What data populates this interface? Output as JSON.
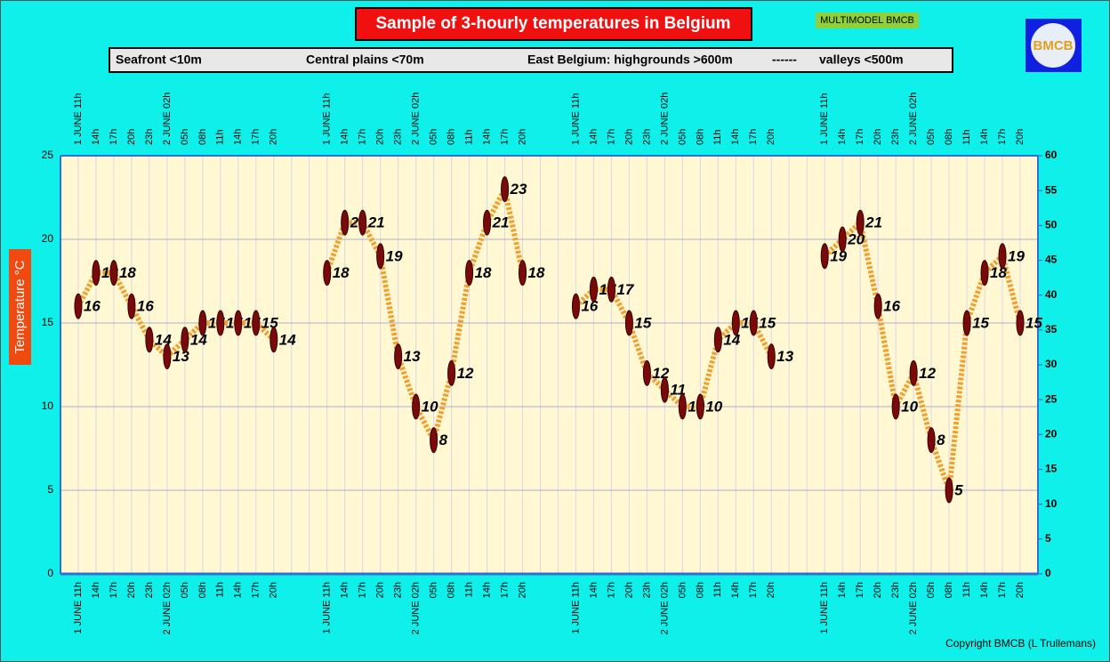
{
  "chart_data": {
    "type": "line",
    "title": "Sample of 3-hourly temperatures in Belgium",
    "badge": "MULTIMODEL BMCB",
    "logo_text": "BMCB",
    "legend_bar": [
      "Seafront <10m",
      "Central plains <70m",
      "East Belgium: highgrounds >600m",
      "------",
      "valleys <500m"
    ],
    "y_label": "Temperature  °C",
    "copyright": "Copyright BMCB (L Trullemans)",
    "categories": [
      "1 JUNE 11h",
      "14h",
      "17h",
      "20h",
      "23h",
      "2 JUNE 02h",
      "05h",
      "08h",
      "11h",
      "14h",
      "17h",
      "20h",
      null,
      null,
      "1 JUNE 11h",
      "14h",
      "17h",
      "20h",
      "23h",
      "2 JUNE 02h",
      "05h",
      "08h",
      "11h",
      "14h",
      "17h",
      "20h",
      null,
      null,
      "1 JUNE 11h",
      "14h",
      "17h",
      "20h",
      "23h",
      "2 JUNE 02h",
      "05h",
      "08h",
      "11h",
      "14h",
      "17h",
      "20h",
      null,
      null,
      "1 JUNE 11h",
      "14h",
      "17h",
      "20h",
      "23h",
      "2 JUNE 02h",
      "05h",
      "08h",
      "11h",
      "14h",
      "17h",
      "20h"
    ],
    "series": [
      {
        "color": "#7a0a0a",
        "line_color": "#f0a030",
        "values": [
          16,
          18,
          18,
          16,
          14,
          13,
          14,
          15,
          15,
          15,
          15,
          14,
          null,
          null,
          18,
          21,
          21,
          19,
          13,
          10,
          8,
          12,
          18,
          21,
          23,
          18,
          null,
          null,
          16,
          17,
          17,
          15,
          12,
          11,
          10,
          10,
          14,
          15,
          15,
          13,
          null,
          null,
          19,
          20,
          21,
          16,
          10,
          12,
          8,
          5,
          15,
          18,
          19,
          15
        ]
      }
    ],
    "ylim": [
      0,
      25
    ],
    "yticks": [
      0,
      5,
      10,
      15,
      20,
      25
    ],
    "y2lim": [
      0,
      60
    ],
    "y2ticks": [
      0,
      5,
      10,
      15,
      20,
      25,
      30,
      35,
      40,
      45,
      50,
      55,
      60
    ],
    "y2_color": "#3c9a1e",
    "grid": true
  }
}
